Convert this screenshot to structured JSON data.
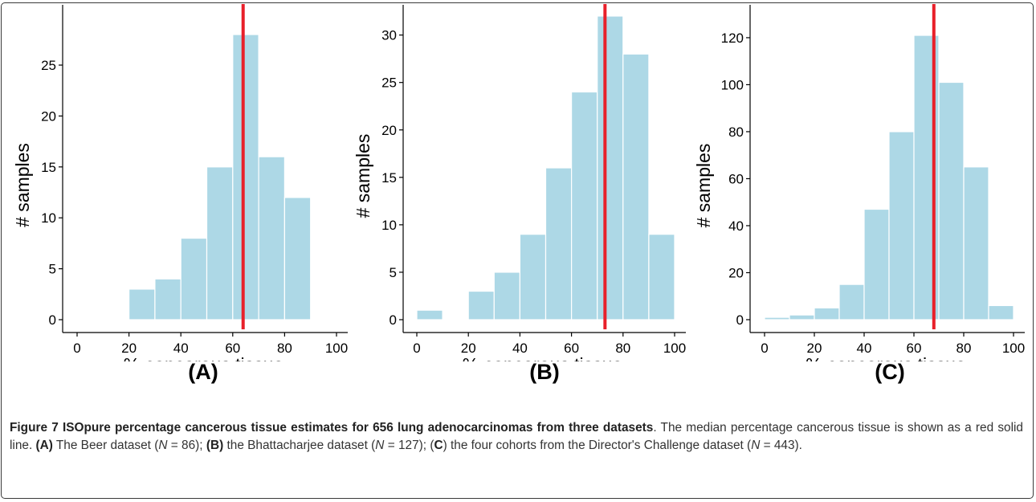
{
  "chart_data": [
    {
      "type": "bar",
      "panel": "(A)",
      "xlabel": "% cancerous tissue",
      "ylabel": "# samples",
      "bin_edges": [
        0,
        10,
        20,
        30,
        40,
        50,
        60,
        70,
        80,
        90,
        100
      ],
      "values": [
        0,
        0,
        3,
        4,
        8,
        15,
        28,
        16,
        12,
        0
      ],
      "median": 64,
      "xlim": [
        0,
        100
      ],
      "ylim": [
        0,
        28
      ],
      "xticks": [
        0,
        20,
        40,
        60,
        80,
        100
      ],
      "yticks": [
        0,
        5,
        10,
        15,
        20,
        25
      ],
      "bar_color": "#add8e6",
      "median_color": "#e8202a"
    },
    {
      "type": "bar",
      "panel": "(B)",
      "xlabel": "% cancerous tissue",
      "ylabel": "# samples",
      "bin_edges": [
        0,
        10,
        20,
        30,
        40,
        50,
        60,
        70,
        80,
        90,
        100
      ],
      "values": [
        1,
        0,
        3,
        5,
        9,
        16,
        24,
        32,
        28,
        9
      ],
      "median": 73,
      "xlim": [
        0,
        100
      ],
      "ylim": [
        0,
        32
      ],
      "xticks": [
        0,
        20,
        40,
        60,
        80,
        100
      ],
      "yticks": [
        0,
        5,
        10,
        15,
        20,
        25,
        30
      ],
      "bar_color": "#add8e6",
      "median_color": "#e8202a"
    },
    {
      "type": "bar",
      "panel": "(C)",
      "xlabel": "% cancerous tissue",
      "ylabel": "# samples",
      "bin_edges": [
        0,
        10,
        20,
        30,
        40,
        50,
        60,
        70,
        80,
        90,
        100
      ],
      "values": [
        1,
        2,
        5,
        15,
        47,
        80,
        121,
        101,
        65,
        6
      ],
      "median": 68,
      "xlim": [
        0,
        100
      ],
      "ylim": [
        0,
        121
      ],
      "xticks": [
        0,
        20,
        40,
        60,
        80,
        100
      ],
      "yticks": [
        0,
        20,
        40,
        60,
        80,
        100,
        120
      ],
      "bar_color": "#add8e6",
      "median_color": "#e8202a"
    }
  ],
  "panel_labels": [
    "(A)",
    "(B)",
    "(C)"
  ],
  "caption": {
    "title": "Figure 7 ISOpure percentage cancerous tissue estimates for 656 lung adenocarcinomas from three datasets",
    "text_1": ". The median percentage cancerous tissue is shown as a red solid line. ",
    "ref_a": "(A)",
    "text_a": " The Beer dataset (",
    "n_label": "N",
    "text_a2": " = 86); ",
    "ref_b": "(B)",
    "text_b": " the Bhattacharjee dataset (",
    "text_b2": " = 127); (",
    "ref_c": "C",
    "text_c": ") the four cohorts from the Director's Challenge dataset (",
    "text_c2": " = 443)."
  }
}
